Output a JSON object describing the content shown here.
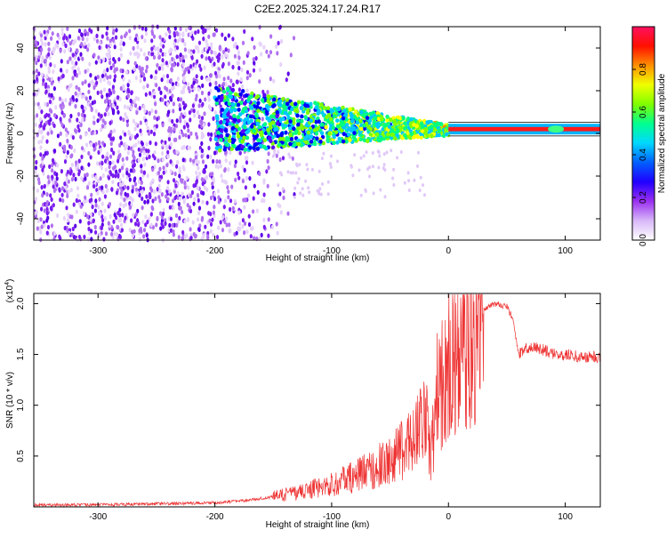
{
  "page_title": "C2E2.2025.324.17.24.R17",
  "chart_data": [
    {
      "type": "heatmap",
      "title": "C2E2.2025.324.17.24.R17",
      "xlabel": "Height of straight line (km)",
      "ylabel": "Frequency (Hz)",
      "xlim": [
        -355,
        130
      ],
      "ylim": [
        -50,
        50
      ],
      "x_ticks": [
        -300,
        -200,
        -100,
        0,
        100
      ],
      "y_ticks": [
        -40,
        -20,
        0,
        20,
        40
      ],
      "colorbar": {
        "label": "Normalized spectral amplitude",
        "range": [
          0,
          1
        ],
        "ticks": [
          0.0,
          0.2,
          0.4,
          0.6,
          0.8
        ],
        "tick_labels": [
          "0.0",
          "0.2",
          "0.4",
          "0.6",
          "0.8"
        ],
        "colors": [
          "#ffffff",
          "#e4c8f8",
          "#9a30f0",
          "#5a00ff",
          "#0000ff",
          "#00c8ff",
          "#00ff80",
          "#80ff00",
          "#ffff00",
          "#ff8000",
          "#ff0000",
          "#ff0080"
        ]
      },
      "signal_description": {
        "noise_region_km": [
          -355,
          -200
        ],
        "band_start_km": -200,
        "band_upper_hz_at_start": 18,
        "band_converges_km": 0,
        "flat_line_hz": 2,
        "flat_line_range_km": [
          0,
          130
        ]
      }
    },
    {
      "type": "line",
      "xlabel": "Height of straight line (km)",
      "ylabel": "SNR (10 * v/v)",
      "ylabel_multiplier": "(x10^4)",
      "ylabel_multiplier_text": "(x10",
      "ylabel_multiplier_exp": "4",
      "xlim": [
        -355,
        130
      ],
      "ylim": [
        0,
        2.1
      ],
      "x_ticks": [
        -300,
        -200,
        -100,
        0,
        100
      ],
      "y_ticks": [
        0.5,
        1.0,
        1.5,
        2.0
      ],
      "y_tick_labels": [
        "0.5",
        "1.0",
        "1.5",
        "2.0"
      ],
      "color": "#ee3333",
      "series": [
        {
          "name": "SNR",
          "x": [
            -355,
            -300,
            -250,
            -200,
            -175,
            -150,
            -125,
            -100,
            -80,
            -60,
            -50,
            -40,
            -30,
            -25,
            -20,
            -15,
            -10,
            -5,
            0,
            10,
            20,
            30,
            40,
            50,
            55,
            60,
            70,
            80,
            90,
            100,
            110,
            120,
            130
          ],
          "y": [
            0.02,
            0.02,
            0.03,
            0.04,
            0.06,
            0.1,
            0.15,
            0.22,
            0.3,
            0.4,
            0.45,
            0.55,
            0.7,
            0.8,
            1.0,
            0.45,
            1.1,
            1.25,
            1.4,
            1.55,
            1.7,
            1.95,
            2.0,
            1.97,
            1.85,
            1.5,
            1.58,
            1.55,
            1.5,
            1.5,
            1.48,
            1.47,
            1.48
          ]
        }
      ]
    }
  ]
}
